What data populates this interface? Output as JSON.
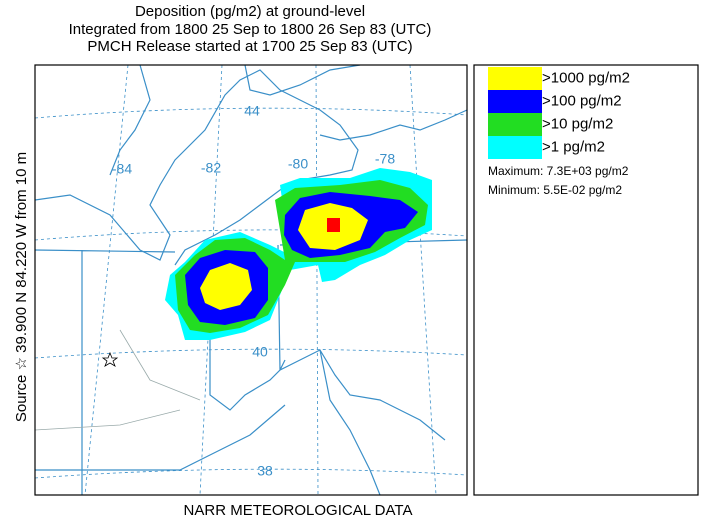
{
  "header": {
    "lines": [
      "Deposition  (pg/m2) at ground-level",
      "Integrated from 1800 25 Sep to 1800 26 Sep 83 (UTC)",
      "PMCH Release started at 1700 25 Sep 83 (UTC)"
    ]
  },
  "source_label": "Source ☆ 39.900  N  84.220  W     from  10 m",
  "footer": "NARR METEOROLOGICAL DATA",
  "map_labels": {
    "lon": [
      "-84",
      "-82",
      "-80",
      "-78"
    ],
    "lat": [
      "44",
      "40",
      "38"
    ]
  },
  "legend": {
    "items": [
      {
        "label": ">1000 pg/m2",
        "color": "#ffff00"
      },
      {
        "label": ">100 pg/m2",
        "color": "#0000ff"
      },
      {
        "label": ">10 pg/m2",
        "color": "#22dd22"
      },
      {
        "label": ">1 pg/m2",
        "color": "#00ffff"
      }
    ],
    "maximum": "Maximum: 7.3E+03 pg/m2",
    "minimum": "Minimum: 5.5E-02 pg/m2"
  }
}
